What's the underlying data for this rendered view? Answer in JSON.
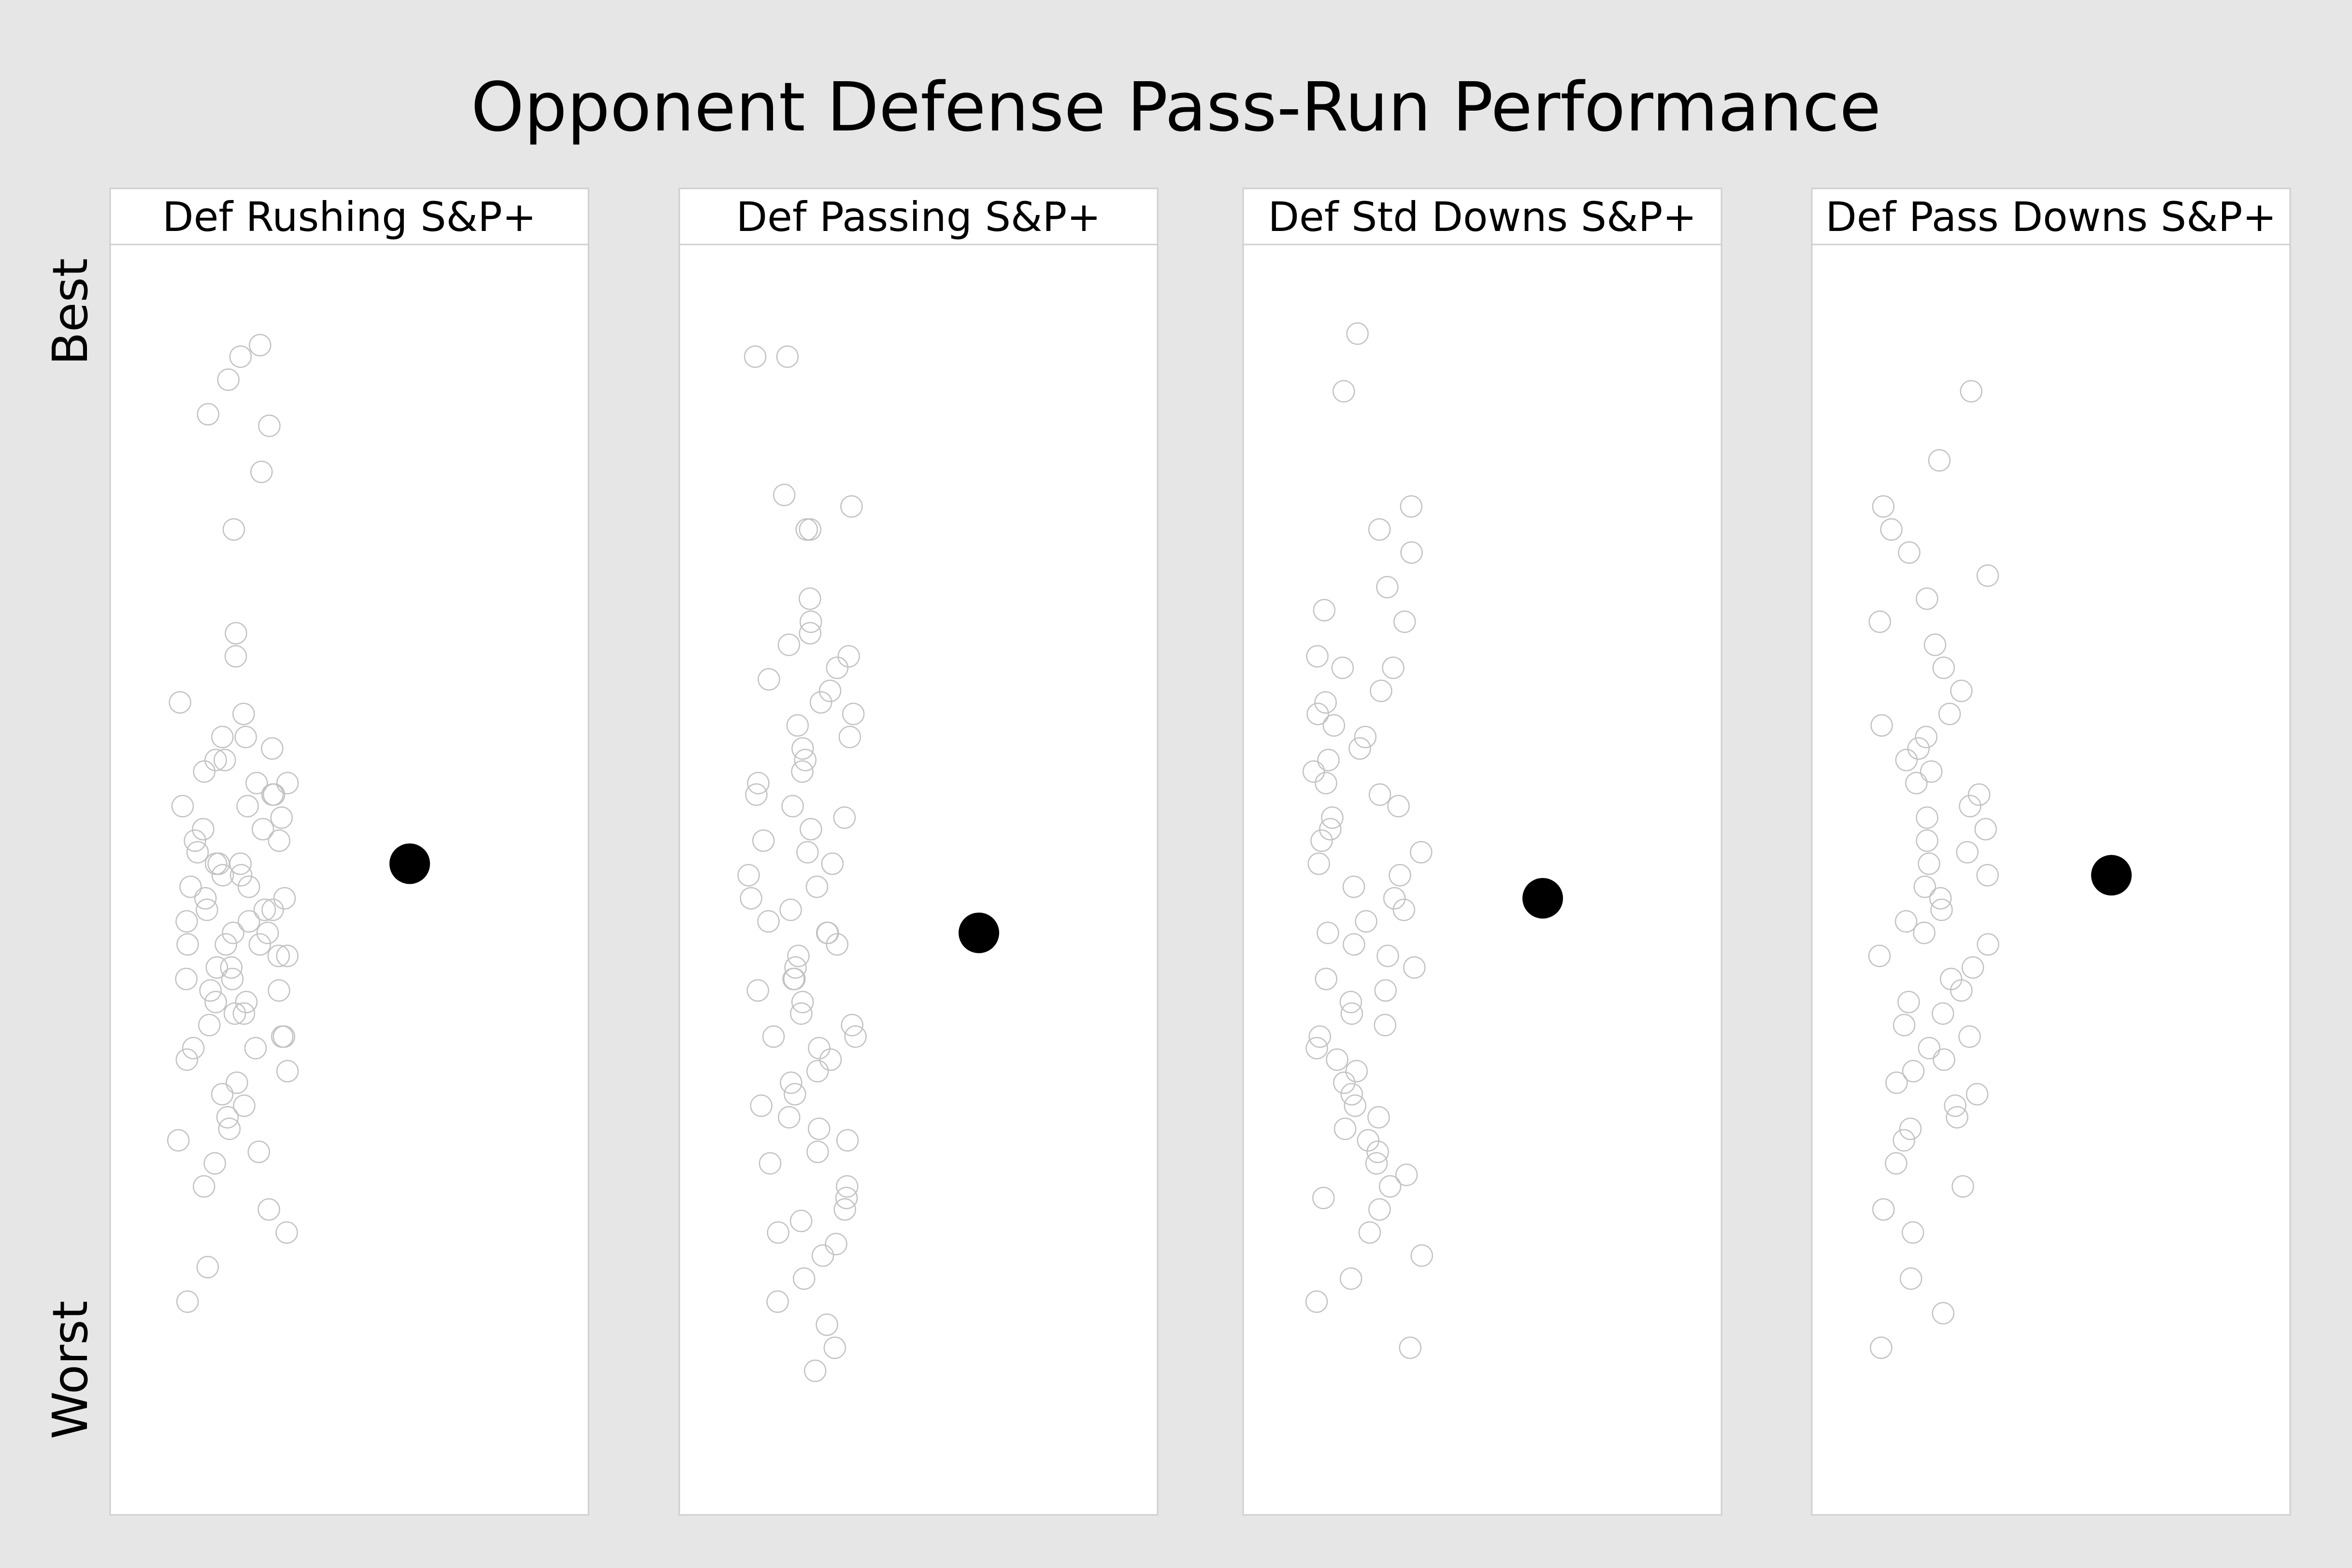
{
  "chart_data": {
    "type": "scatter",
    "title": "Opponent Defense Pass-Run Performance",
    "y_axis": {
      "top_label": "Best",
      "bottom_label": "Worst",
      "ylim": [
        0,
        1
      ],
      "direction": "higher is better"
    },
    "grid": false,
    "legend": "none",
    "colors": {
      "background": "#e6e6e6",
      "panel": "#ffffff",
      "other_points": "#c2c2c2",
      "highlight": "#000000"
    },
    "panels": [
      {
        "title": "Def Rushing S&P+",
        "highlight": 0.5,
        "others": [
          0.95,
          0.94,
          0.92,
          0.89,
          0.88,
          0.84,
          0.79,
          0.7,
          0.68,
          0.64,
          0.63,
          0.61,
          0.61,
          0.6,
          0.59,
          0.59,
          0.58,
          0.57,
          0.57,
          0.56,
          0.56,
          0.55,
          0.55,
          0.54,
          0.53,
          0.53,
          0.52,
          0.52,
          0.51,
          0.5,
          0.5,
          0.5,
          0.49,
          0.49,
          0.48,
          0.48,
          0.47,
          0.47,
          0.46,
          0.46,
          0.46,
          0.45,
          0.45,
          0.44,
          0.44,
          0.43,
          0.43,
          0.43,
          0.42,
          0.42,
          0.41,
          0.41,
          0.4,
          0.4,
          0.39,
          0.39,
          0.38,
          0.38,
          0.37,
          0.37,
          0.36,
          0.35,
          0.35,
          0.34,
          0.34,
          0.33,
          0.32,
          0.31,
          0.3,
          0.29,
          0.28,
          0.27,
          0.26,
          0.25,
          0.24,
          0.22,
          0.2,
          0.18,
          0.15,
          0.12
        ]
      },
      {
        "title": "Def Passing S&P+",
        "highlight": 0.44,
        "others": [
          0.94,
          0.94,
          0.82,
          0.81,
          0.79,
          0.79,
          0.73,
          0.71,
          0.7,
          0.69,
          0.68,
          0.67,
          0.66,
          0.65,
          0.64,
          0.63,
          0.62,
          0.61,
          0.6,
          0.59,
          0.58,
          0.57,
          0.56,
          0.55,
          0.54,
          0.53,
          0.52,
          0.51,
          0.5,
          0.49,
          0.48,
          0.47,
          0.46,
          0.45,
          0.44,
          0.44,
          0.43,
          0.42,
          0.41,
          0.4,
          0.4,
          0.39,
          0.38,
          0.37,
          0.36,
          0.35,
          0.35,
          0.34,
          0.33,
          0.32,
          0.31,
          0.3,
          0.29,
          0.28,
          0.27,
          0.26,
          0.25,
          0.24,
          0.22,
          0.21,
          0.2,
          0.19,
          0.18,
          0.17,
          0.16,
          0.14,
          0.12,
          0.1,
          0.08,
          0.06
        ]
      },
      {
        "title": "Def Std Downs S&P+",
        "highlight": 0.47,
        "others": [
          0.96,
          0.91,
          0.81,
          0.79,
          0.77,
          0.74,
          0.72,
          0.71,
          0.68,
          0.67,
          0.67,
          0.65,
          0.64,
          0.63,
          0.62,
          0.61,
          0.6,
          0.59,
          0.58,
          0.57,
          0.56,
          0.55,
          0.54,
          0.53,
          0.52,
          0.51,
          0.5,
          0.49,
          0.48,
          0.47,
          0.46,
          0.45,
          0.44,
          0.43,
          0.42,
          0.41,
          0.4,
          0.39,
          0.38,
          0.37,
          0.36,
          0.35,
          0.34,
          0.33,
          0.32,
          0.31,
          0.3,
          0.29,
          0.28,
          0.27,
          0.26,
          0.25,
          0.24,
          0.23,
          0.22,
          0.21,
          0.2,
          0.18,
          0.16,
          0.14,
          0.12,
          0.08
        ]
      },
      {
        "title": "Def Pass Downs S&P+",
        "highlight": 0.49,
        "others": [
          0.91,
          0.85,
          0.81,
          0.79,
          0.77,
          0.75,
          0.73,
          0.71,
          0.69,
          0.67,
          0.65,
          0.63,
          0.62,
          0.61,
          0.6,
          0.59,
          0.58,
          0.57,
          0.56,
          0.55,
          0.54,
          0.53,
          0.52,
          0.51,
          0.5,
          0.49,
          0.48,
          0.47,
          0.46,
          0.45,
          0.44,
          0.43,
          0.42,
          0.41,
          0.4,
          0.39,
          0.38,
          0.37,
          0.36,
          0.35,
          0.34,
          0.33,
          0.32,
          0.31,
          0.3,
          0.29,
          0.28,
          0.27,
          0.26,
          0.24,
          0.22,
          0.2,
          0.18,
          0.14,
          0.11,
          0.08
        ]
      }
    ]
  }
}
